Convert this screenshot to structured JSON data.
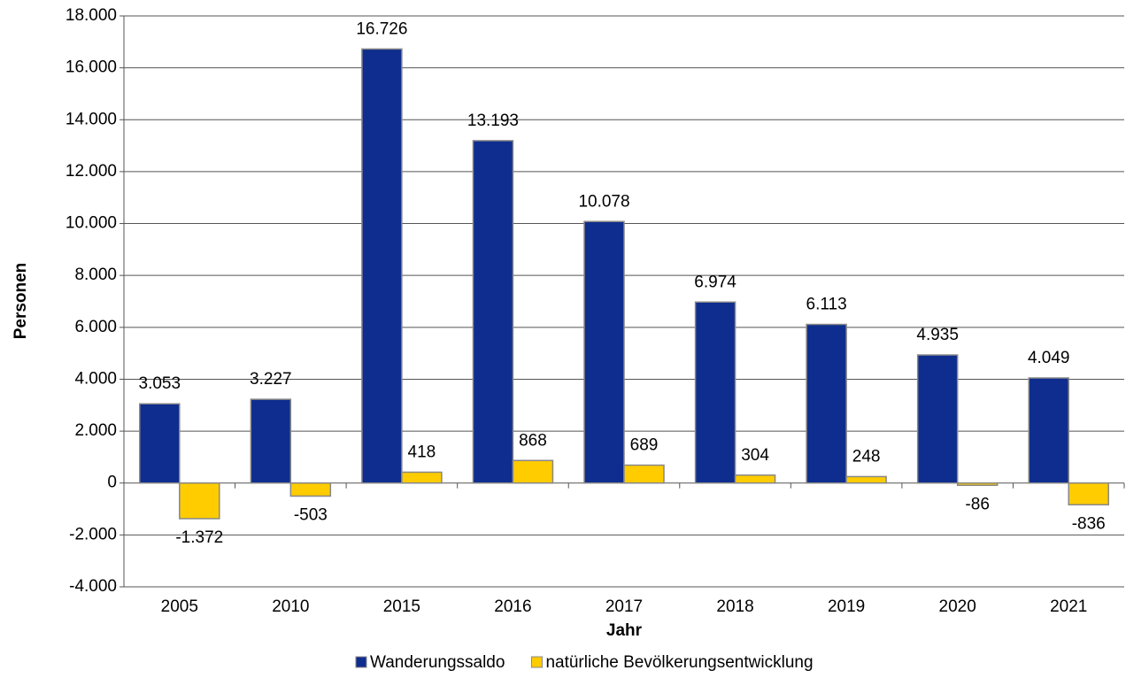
{
  "chart_data": {
    "type": "bar",
    "y_label": "Personen",
    "x_label": "Jahr",
    "categories": [
      "2005",
      "2010",
      "2015",
      "2016",
      "2017",
      "2018",
      "2019",
      "2020",
      "2021"
    ],
    "series": [
      {
        "name": "Wanderungssaldo",
        "color": "#0e2d8e",
        "values": [
          3053,
          3227,
          16726,
          13193,
          10078,
          6974,
          6113,
          4935,
          4049
        ],
        "value_labels": [
          "3.053",
          "3.227",
          "16.726",
          "13.193",
          "10.078",
          "6.974",
          "6.113",
          "4.935",
          "4.049"
        ]
      },
      {
        "name": "natürliche Bevölkerungsentwicklung",
        "color": "#ffcc00",
        "values": [
          -1372,
          -503,
          418,
          868,
          689,
          304,
          248,
          -86,
          -836
        ],
        "value_labels": [
          "-1.372",
          "-503",
          "418",
          "868",
          "689",
          "304",
          "248",
          "-86",
          "-836"
        ]
      }
    ],
    "ylim": [
      -4000,
      18000
    ],
    "yticks": [
      {
        "value": -4000,
        "label": "-4.000"
      },
      {
        "value": -2000,
        "label": "-2.000"
      },
      0,
      {
        "value": 2000,
        "label": "2.000"
      },
      {
        "value": 4000,
        "label": "4.000"
      },
      {
        "value": 6000,
        "label": "6.000"
      },
      {
        "value": 8000,
        "label": "8.000"
      },
      {
        "value": 10000,
        "label": "10.000"
      },
      {
        "value": 12000,
        "label": "12.000"
      },
      {
        "value": 14000,
        "label": "14.000"
      },
      {
        "value": 16000,
        "label": "16.000"
      },
      {
        "value": 18000,
        "label": "18.000"
      }
    ],
    "grid": true,
    "legend": "bottom"
  }
}
